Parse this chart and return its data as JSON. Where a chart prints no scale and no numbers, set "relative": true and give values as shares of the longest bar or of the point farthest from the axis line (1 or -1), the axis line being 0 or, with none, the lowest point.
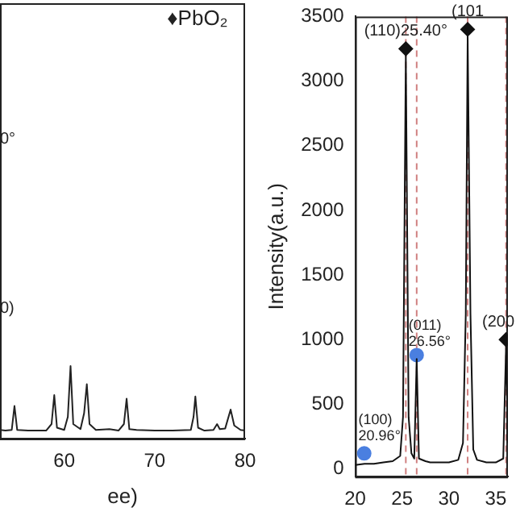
{
  "chart_data": [
    {
      "type": "line",
      "xlabel": "ee)",
      "relative": true,
      "tick_labels": "x",
      "grid": false,
      "legend": false,
      "marker": "none",
      "line_style": "solid",
      "xlim": [
        52.9,
        80
      ],
      "xticks": [
        60,
        70,
        80
      ],
      "annotations": [
        "♦PbO₂",
        "0°",
        "0)"
      ],
      "series": [
        {
          "color": "#222222",
          "x": [
            52.9,
            53.5,
            54.2,
            54.5,
            54.8,
            56,
            58,
            58.6,
            58.9,
            59.2,
            60,
            60.4,
            60.7,
            61,
            61.8,
            62.2,
            62.5,
            62.8,
            63.5,
            65,
            66,
            66.6,
            66.9,
            67.2,
            68,
            70,
            72,
            74,
            74.3,
            74.5,
            74.8,
            75.5,
            76.5,
            76.9,
            77.2,
            77.8,
            78.4,
            78.8,
            79.5,
            80
          ],
          "values": [
            0.12,
            0.11,
            0.12,
            0.45,
            0.12,
            0.11,
            0.11,
            0.2,
            0.6,
            0.15,
            0.12,
            0.3,
            1,
            0.2,
            0.13,
            0.35,
            0.75,
            0.2,
            0.12,
            0.13,
            0.11,
            0.2,
            0.55,
            0.13,
            0.12,
            0.11,
            0.11,
            0.12,
            0.3,
            0.58,
            0.15,
            0.11,
            0.12,
            0.2,
            0.13,
            0.14,
            0.4,
            0.18,
            0.12,
            0.11
          ]
        }
      ]
    },
    {
      "type": "line",
      "ylabel": "Intensity(a.u.)",
      "grid": false,
      "legend": false,
      "xlim": [
        20,
        36.3
      ],
      "xticks": [
        20,
        25,
        30,
        35
      ],
      "ylim": [
        -60,
        3500
      ],
      "yticks": [
        0,
        500,
        1000,
        1500,
        2000,
        2500,
        3000,
        3500
      ],
      "ref_lines": [
        {
          "axis": "x",
          "value": 25.4,
          "color": "#d08080",
          "line_style": "dashed"
        },
        {
          "axis": "x",
          "value": 26.56,
          "color": "#d08080",
          "line_style": "dashed"
        },
        {
          "axis": "x",
          "value": 32.0,
          "color": "#d08080",
          "line_style": "dashed"
        },
        {
          "axis": "x",
          "value": 36.1,
          "color": "#d08080",
          "line_style": "dashed"
        }
      ],
      "annotations": [
        {
          "text": "(110)25.40°",
          "x": 25.4,
          "y": 3250
        },
        {
          "text": "(101",
          "x": 32.0,
          "y": 3400
        },
        {
          "text": "(011)\n26.56°",
          "x": 26.56,
          "y": 850
        },
        {
          "text": "(100)\n20.96°",
          "x": 20.96,
          "y": 120
        },
        {
          "text": "(200",
          "x": 36.1,
          "y": 1000
        }
      ],
      "series": [
        {
          "marker": "none",
          "color": "#111111",
          "x": [
            20,
            21,
            22,
            23,
            24,
            24.8,
            25.1,
            25.4,
            25.7,
            26,
            26.3,
            26.56,
            26.8,
            27.5,
            28,
            29,
            30,
            31,
            31.5,
            31.8,
            32.0,
            32.3,
            32.6,
            33,
            34,
            35,
            35.8,
            36.1,
            36.3
          ],
          "values": [
            30,
            40,
            40,
            50,
            60,
            100,
            400,
            3200,
            400,
            120,
            80,
            850,
            80,
            60,
            50,
            50,
            50,
            70,
            200,
            1200,
            3350,
            1200,
            150,
            70,
            50,
            50,
            80,
            950,
            200
          ]
        },
        {
          "type": "scatter",
          "marker": "diamond",
          "color": "#111111",
          "x": [
            25.4,
            32.0,
            36.1
          ],
          "values": [
            3250,
            3400,
            1000
          ]
        },
        {
          "type": "scatter",
          "marker": "circle",
          "color": "#4a7fe0",
          "x": [
            20.96,
            26.56
          ],
          "values": [
            120,
            880
          ]
        }
      ]
    }
  ]
}
